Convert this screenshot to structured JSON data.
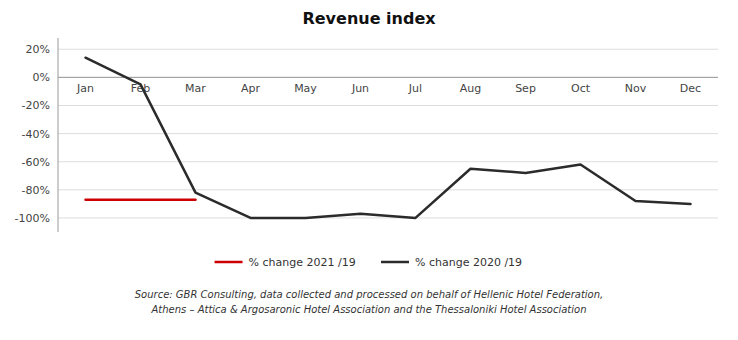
{
  "chart_data": {
    "type": "line",
    "title": "Revenue index",
    "categories": [
      "Jan",
      "Feb",
      "Mar",
      "Apr",
      "May",
      "Jun",
      "Jul",
      "Aug",
      "Sep",
      "Oct",
      "Nov",
      "Dec"
    ],
    "series": [
      {
        "name": "% change 2020 /19",
        "color": "#2b2b2b",
        "values": [
          14,
          -5,
          -82,
          -100,
          -100,
          -97,
          -100,
          -65,
          -68,
          -62,
          -88,
          -90
        ]
      },
      {
        "name": "% change 2021 /19",
        "color": "#cc0000",
        "values": [
          -87,
          -87,
          -87,
          null,
          null,
          null,
          null,
          null,
          null,
          null,
          null,
          null
        ]
      }
    ],
    "ylim": [
      -110,
      28
    ],
    "yticks": [
      {
        "value": -100,
        "label": "-100%"
      },
      {
        "value": -80,
        "label": "-80%"
      },
      {
        "value": -60,
        "label": "-60%"
      },
      {
        "value": -40,
        "label": "-40%"
      },
      {
        "value": -20,
        "label": "-20%"
      },
      {
        "value": 0,
        "label": "0%"
      },
      {
        "value": 20,
        "label": "20%"
      }
    ],
    "grid": true,
    "legend": "bottom",
    "annotations": [
      "Source: GBR Consulting, data collected and processed on behalf of Hellenic Hotel Federation,",
      "Athens – Attica & Argosaronic Hotel Association and the Thessaloniki Hotel Association"
    ]
  }
}
